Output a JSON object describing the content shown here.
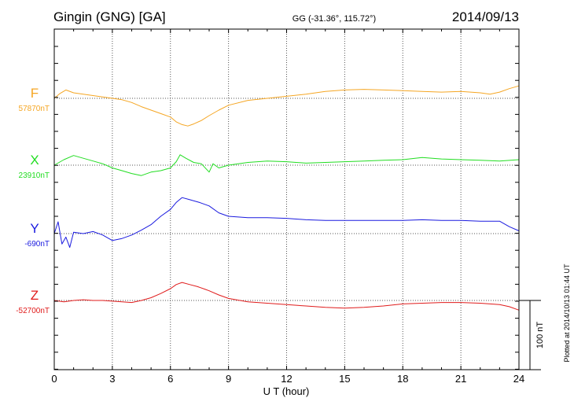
{
  "header": {
    "station": "Gingin (GNG)  [GA]",
    "coords": "GG (-31.36°, 115.72°)",
    "date": "2014/09/13"
  },
  "footer": {
    "plotted": "Plotted at 2014/10/13 01:44 UT"
  },
  "colors": {
    "F": "#f5a623",
    "X": "#22dd22",
    "Y": "#1a1adf",
    "Z": "#e01b1b",
    "axis": "#000000",
    "grid": "#555555"
  },
  "chart_data": {
    "type": "line",
    "xlabel": "U T (hour)",
    "xlim": [
      0,
      24
    ],
    "xticks": [
      0,
      3,
      6,
      9,
      12,
      15,
      18,
      21,
      24
    ],
    "xtick_labels": [
      "0",
      "3",
      "6",
      "9",
      "12",
      "15",
      "18",
      "21",
      "24"
    ],
    "grid": true,
    "scale_bar": {
      "label": "100 nT",
      "value_nT": 100
    },
    "series": [
      {
        "name": "F",
        "baseline_label": "57870nT",
        "baseline_nT": 57870,
        "x": [
          0,
          0.3,
          0.6,
          1,
          1.5,
          2,
          2.5,
          3,
          3.5,
          4,
          4.5,
          5,
          5.5,
          6,
          6.3,
          6.6,
          6.9,
          7.2,
          7.6,
          8,
          8.5,
          9,
          10,
          11,
          12,
          13,
          14,
          15,
          16,
          17,
          18,
          19,
          20,
          21,
          22,
          22.5,
          23,
          23.5,
          24
        ],
        "values": [
          57870,
          57877,
          57882,
          57878,
          57876,
          57874,
          57872,
          57870,
          57868,
          57864,
          57858,
          57853,
          57848,
          57843,
          57836,
          57832,
          57830,
          57833,
          57838,
          57845,
          57853,
          57860,
          57867,
          57870,
          57873,
          57876,
          57880,
          57882,
          57883,
          57882,
          57881,
          57880,
          57879,
          57880,
          57878,
          57876,
          57879,
          57884,
          57888
        ]
      },
      {
        "name": "X",
        "baseline_label": "23910nT",
        "baseline_nT": 23910,
        "x": [
          0,
          0.5,
          1,
          1.5,
          2,
          2.5,
          3,
          3.5,
          4,
          4.5,
          5,
          5.5,
          6,
          6.3,
          6.5,
          6.8,
          7.2,
          7.6,
          8,
          8.2,
          8.5,
          9,
          10,
          11,
          12,
          13,
          14,
          15,
          16,
          17,
          18,
          19,
          20,
          21,
          22,
          23,
          24
        ],
        "values": [
          23910,
          23918,
          23924,
          23920,
          23916,
          23912,
          23906,
          23902,
          23898,
          23895,
          23900,
          23902,
          23906,
          23915,
          23925,
          23920,
          23914,
          23912,
          23900,
          23912,
          23906,
          23910,
          23914,
          23916,
          23915,
          23913,
          23914,
          23915,
          23916,
          23917,
          23918,
          23921,
          23919,
          23918,
          23917,
          23916,
          23918
        ]
      },
      {
        "name": "Y",
        "baseline_label": "-690nT",
        "baseline_nT": -690,
        "x": [
          0,
          0.2,
          0.4,
          0.6,
          0.8,
          1,
          1.5,
          2,
          2.5,
          3,
          3.5,
          4,
          4.5,
          5,
          5.5,
          6,
          6.3,
          6.6,
          7,
          7.5,
          8,
          8.5,
          9,
          10,
          11,
          12,
          13,
          14,
          15,
          16,
          17,
          18,
          19,
          20,
          21,
          22,
          23,
          23.5,
          24
        ],
        "values": [
          -690,
          -673,
          -705,
          -695,
          -710,
          -688,
          -690,
          -687,
          -692,
          -700,
          -697,
          -692,
          -685,
          -677,
          -665,
          -655,
          -645,
          -638,
          -641,
          -645,
          -650,
          -660,
          -665,
          -667,
          -667,
          -668,
          -670,
          -671,
          -671,
          -671,
          -671,
          -671,
          -670,
          -671,
          -671,
          -672,
          -672,
          -680,
          -686
        ]
      },
      {
        "name": "Z",
        "baseline_label": "-52700nT",
        "baseline_nT": -52700,
        "x": [
          0,
          0.5,
          1,
          1.5,
          2,
          2.5,
          3,
          3.5,
          4,
          4.5,
          5,
          5.5,
          6,
          6.3,
          6.6,
          7,
          7.4,
          7.8,
          8,
          8.5,
          9,
          10,
          11,
          12,
          13,
          14,
          15,
          16,
          17,
          18,
          19,
          20,
          21,
          22,
          23,
          23.5,
          24
        ],
        "values": [
          -52700,
          -52702,
          -52700,
          -52699,
          -52700,
          -52700,
          -52701,
          -52702,
          -52703,
          -52700,
          -52696,
          -52690,
          -52683,
          -52677,
          -52674,
          -52677,
          -52680,
          -52684,
          -52686,
          -52692,
          -52697,
          -52702,
          -52704,
          -52706,
          -52708,
          -52710,
          -52711,
          -52710,
          -52708,
          -52705,
          -52704,
          -52703,
          -52703,
          -52704,
          -52706,
          -52709,
          -52714
        ]
      }
    ]
  }
}
